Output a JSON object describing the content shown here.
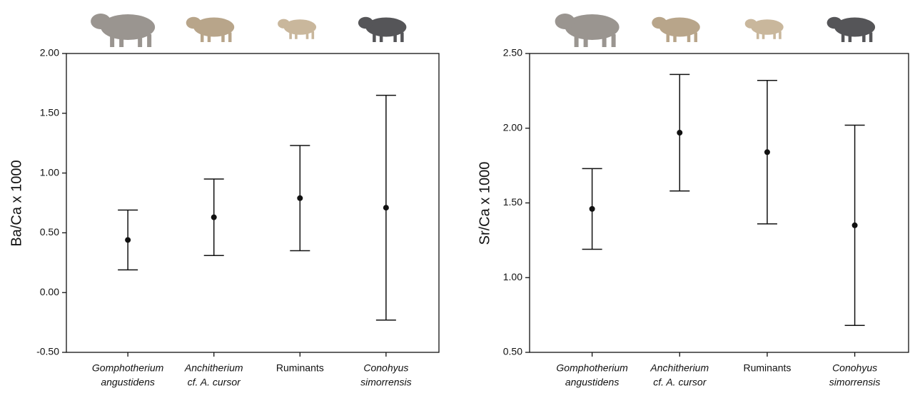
{
  "chart_data": [
    {
      "type": "errorbar",
      "ylabel": "Ba/Ca x 1000",
      "categories": [
        [
          "Gomphotherium",
          "angustidens"
        ],
        [
          "Anchitherium",
          "cf. A. cursor"
        ],
        [
          "Ruminants"
        ],
        [
          "Conohyus",
          "simorrensis"
        ]
      ],
      "values": [
        0.44,
        0.63,
        0.79,
        0.71
      ],
      "errors": [
        0.25,
        0.32,
        0.44,
        0.94
      ],
      "color": "#111111",
      "ylim": [
        -0.5,
        2.0
      ],
      "yticks": [
        {
          "value": -0.5,
          "label": "-0.50"
        },
        {
          "value": 0,
          "label": "0.00"
        },
        {
          "value": 0.5,
          "label": "0.50"
        },
        {
          "value": 1.0,
          "label": "1.00"
        },
        {
          "value": 1.5,
          "label": "1.50"
        },
        {
          "value": 2.0,
          "label": "2.00"
        }
      ]
    },
    {
      "type": "errorbar",
      "ylabel": "Sr/Ca x 1000",
      "categories": [
        [
          "Gomphotherium",
          "angustidens"
        ],
        [
          "Anchitherium",
          "cf. A. cursor"
        ],
        [
          "Ruminants"
        ],
        [
          "Conohyus",
          "simorrensis"
        ]
      ],
      "values": [
        1.46,
        1.97,
        1.84,
        1.35
      ],
      "errors": [
        0.27,
        0.39,
        0.48,
        0.67
      ],
      "color": "#111111",
      "ylim": [
        0.5,
        2.5
      ],
      "yticks": [
        {
          "value": 0.5,
          "label": "0.50"
        },
        {
          "value": 1.0,
          "label": "1.00"
        },
        {
          "value": 1.5,
          "label": "1.50"
        },
        {
          "value": 2.0,
          "label": "2.00"
        },
        {
          "value": 2.5,
          "label": "2.50"
        }
      ]
    }
  ]
}
